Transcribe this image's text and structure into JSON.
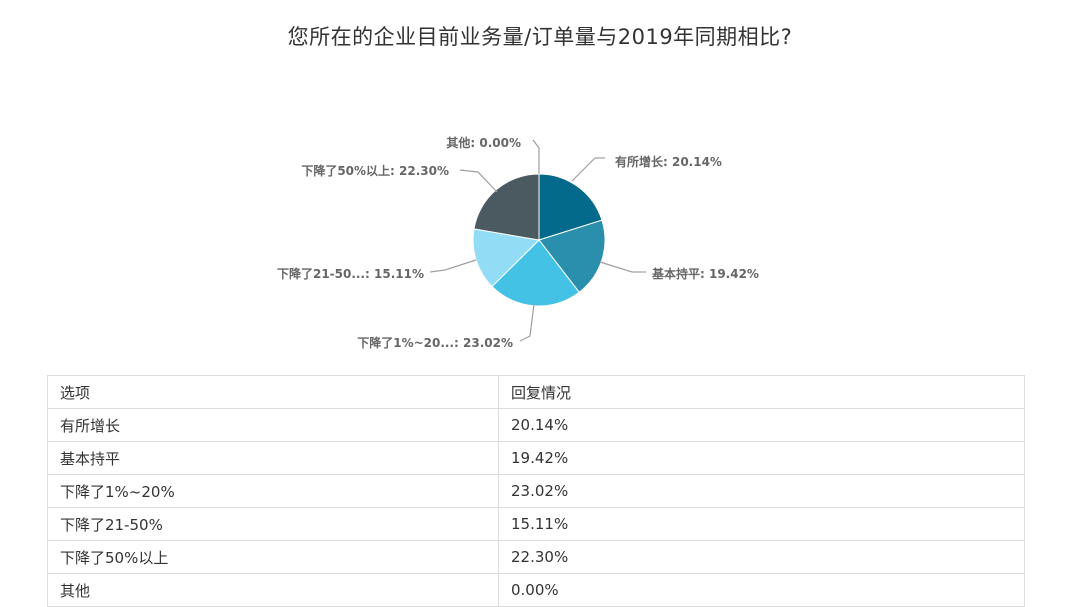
{
  "title": "您所在的企业目前业务量/订单量与2019年同期相比?",
  "chart_data": {
    "type": "pie",
    "categories": [
      "有所增长",
      "基本持平",
      "下降了1%~20%",
      "下降了21-50%",
      "下降了50%以上",
      "其他"
    ],
    "values": [
      20.14,
      19.42,
      23.02,
      15.11,
      22.3,
      0.0
    ],
    "labels": [
      "有所增长: 20.14%",
      "基本持平: 19.42%",
      "下降了1%~20...: 23.02%",
      "下降了21-50...: 15.11%",
      "下降了50%以上: 22.30%",
      "其他: 0.00%"
    ],
    "colors": [
      "#046a8b",
      "#2a8fac",
      "#43c2e5",
      "#92dcf5",
      "#4b5960",
      "#bbbbbb"
    ]
  },
  "table": {
    "headers": [
      "选项",
      "回复情况"
    ],
    "rows": [
      [
        "有所增长",
        "20.14%"
      ],
      [
        "基本持平",
        "19.42%"
      ],
      [
        "下降了1%~20%",
        "23.02%"
      ],
      [
        "下降了21-50%",
        "15.11%"
      ],
      [
        "下降了50%以上",
        "22.30%"
      ],
      [
        "其他",
        "0.00%"
      ]
    ]
  }
}
